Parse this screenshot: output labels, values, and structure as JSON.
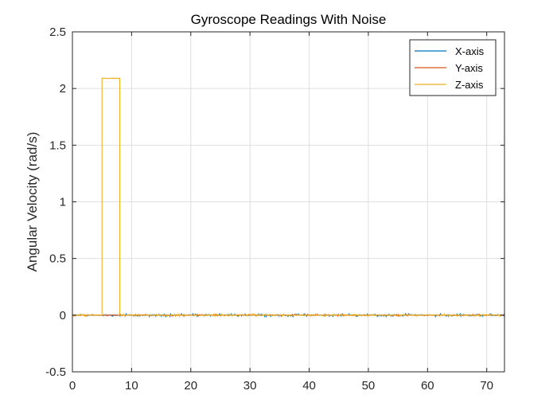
{
  "chart_data": {
    "type": "line",
    "title": "Gyroscope Readings With Noise",
    "xlabel": "",
    "ylabel": "Angular Velocity (rad/s)",
    "xlim": [
      0,
      73
    ],
    "ylim": [
      -0.5,
      2.5
    ],
    "xticks": [
      0,
      10,
      20,
      30,
      40,
      50,
      60,
      70
    ],
    "yticks": [
      -0.5,
      0,
      0.5,
      1,
      1.5,
      2,
      2.5
    ],
    "xtick_labels": [
      "0",
      "10",
      "20",
      "30",
      "40",
      "50",
      "60",
      "70"
    ],
    "ytick_labels": [
      "-0.5",
      "0",
      "0.5",
      "1",
      "1.5",
      "2",
      "2.5"
    ],
    "grid": true,
    "legend_position": "top-right",
    "series": [
      {
        "name": "X-axis",
        "color": "#0072BD",
        "x": [
          0,
          73
        ],
        "y": [
          0.0,
          0.0
        ],
        "noise_amplitude": 0.012
      },
      {
        "name": "Y-axis",
        "color": "#D95319",
        "x": [
          0,
          73
        ],
        "y": [
          0.0,
          0.0
        ],
        "noise_amplitude": 0.008
      },
      {
        "name": "Z-axis",
        "color": "#EDB120",
        "x": [
          0,
          5,
          5,
          8,
          8,
          73
        ],
        "y": [
          0.0,
          0.0,
          2.09,
          2.09,
          0.0,
          0.0
        ],
        "noise_amplitude": 0.01
      }
    ]
  }
}
